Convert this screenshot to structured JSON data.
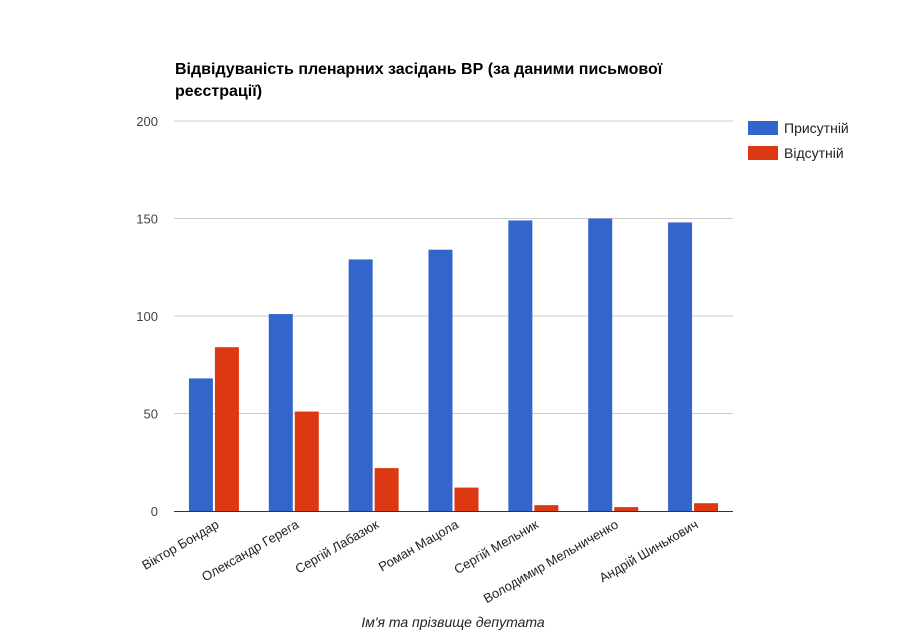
{
  "chart_data": {
    "type": "bar",
    "title_lines": [
      "Відвідуваність пленарних засідань ВР (за даними письмової",
      "реєстрації)"
    ],
    "xlabel": "Ім'я та прізвище депутата",
    "ylabel": "",
    "ylim": [
      0,
      200
    ],
    "yticks": [
      0,
      50,
      100,
      150,
      200
    ],
    "grid": true,
    "legend_position": "right-top",
    "categories": [
      "Віктор Бондар",
      "Олександр Герега",
      "Сергій Лабазюк",
      "Роман Мацола",
      "Сергій Мельник",
      "Володимир Мельниченко",
      "Андрій Шинькович"
    ],
    "series": [
      {
        "name": "Присутній",
        "color": "#3366cc",
        "values": [
          68,
          101,
          129,
          134,
          149,
          150,
          148
        ]
      },
      {
        "name": "Відсутній",
        "color": "#dc3912",
        "values": [
          84,
          51,
          22,
          12,
          3,
          2,
          4
        ]
      }
    ]
  }
}
